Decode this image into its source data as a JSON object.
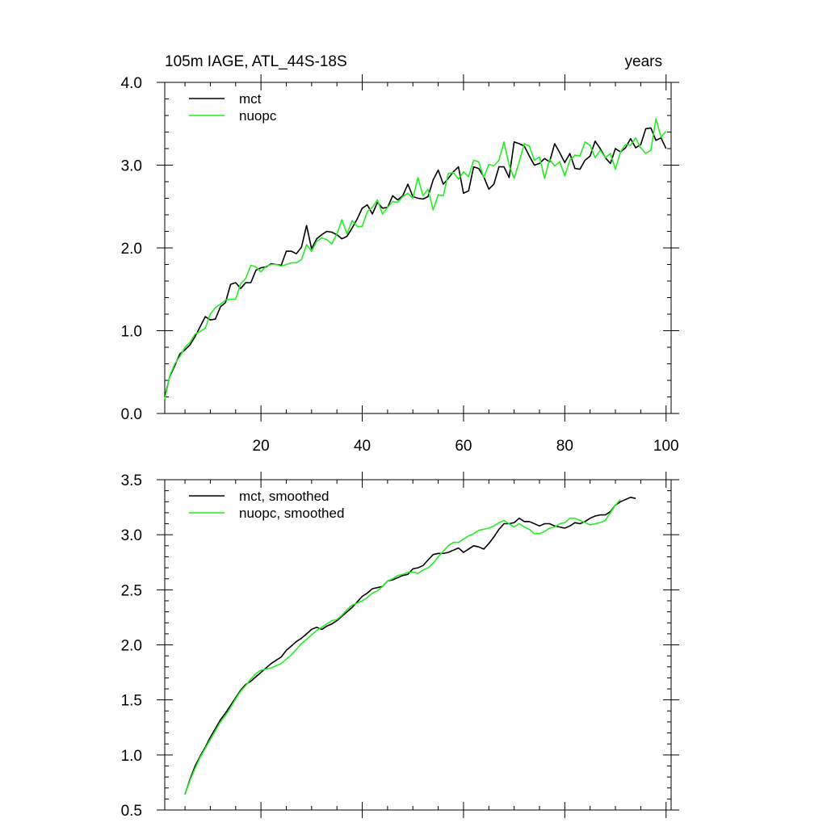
{
  "header": {
    "title": "105m IAGE, ATL_44S-18S",
    "units": "years"
  },
  "colors": {
    "mct": "#000000",
    "nuopc": "#22ee22"
  },
  "chart_data": [
    {
      "type": "line",
      "xlim": [
        1,
        101
      ],
      "ylim": [
        0,
        4
      ],
      "x_ticks": [
        20,
        40,
        60,
        80,
        100
      ],
      "y_ticks": [
        0,
        1,
        2,
        3,
        4
      ],
      "y_tick_labels": [
        "0.0",
        "1.0",
        "2.0",
        "3.0",
        "4.0"
      ],
      "x_tick_labels_shown": true,
      "legend": "top-left",
      "grid": false,
      "series": [
        {
          "name": "mct",
          "color": "#000000",
          "x_start": 1,
          "values": [
            0.2,
            0.45,
            0.58,
            0.72,
            0.77,
            0.83,
            0.93,
            1.05,
            1.17,
            1.13,
            1.14,
            1.29,
            1.34,
            1.56,
            1.58,
            1.51,
            1.58,
            1.58,
            1.73,
            1.76,
            1.77,
            1.81,
            1.8,
            1.79,
            1.96,
            1.96,
            1.93,
            2.01,
            2.27,
            1.99,
            2.11,
            2.16,
            2.2,
            2.19,
            2.16,
            2.11,
            2.14,
            2.24,
            2.35,
            2.48,
            2.52,
            2.41,
            2.55,
            2.48,
            2.49,
            2.63,
            2.58,
            2.63,
            2.77,
            2.62,
            2.6,
            2.59,
            2.62,
            2.82,
            2.94,
            2.77,
            2.84,
            2.92,
            2.98,
            2.66,
            2.69,
            2.98,
            2.96,
            2.86,
            2.71,
            2.77,
            2.98,
            2.98,
            2.85,
            3.28,
            3.26,
            3.23,
            3.11,
            3,
            3.02,
            3.08,
            3.04,
            3.26,
            3.15,
            3.03,
            3.14,
            2.96,
            2.95,
            3.06,
            3.11,
            3.29,
            3.2,
            3.09,
            3.02,
            3.2,
            3.16,
            3.21,
            3.32,
            3.21,
            3.25,
            3.44,
            3.45,
            3.3,
            3.33,
            3.2
          ]
        },
        {
          "name": "nuopc",
          "color": "#22ee22",
          "x_start": 1,
          "values": [
            0.17,
            0.46,
            0.6,
            0.69,
            0.8,
            0.86,
            0.96,
            0.99,
            1.03,
            1.2,
            1.28,
            1.32,
            1.37,
            1.38,
            1.38,
            1.57,
            1.63,
            1.79,
            1.77,
            1.71,
            1.78,
            1.8,
            1.8,
            1.78,
            1.8,
            1.82,
            1.82,
            1.86,
            2.04,
            1.96,
            2.08,
            2.12,
            2.1,
            2.05,
            2.17,
            2.34,
            2.17,
            2.33,
            2.26,
            2.26,
            2.44,
            2.49,
            2.58,
            2.41,
            2.49,
            2.56,
            2.55,
            2.62,
            2.66,
            2.6,
            2.85,
            2.63,
            2.71,
            2.46,
            2.64,
            2.63,
            2.9,
            2.91,
            2.83,
            2.92,
            2.86,
            3.06,
            3.04,
            2.85,
            3.01,
            2.99,
            3.06,
            3.28,
            3,
            2.84,
            3.04,
            3.26,
            3.23,
            3.06,
            3.1,
            2.84,
            3.07,
            2.99,
            3.04,
            2.87,
            3.06,
            3.12,
            3.11,
            3.28,
            3.24,
            3.09,
            3.18,
            3.09,
            3.14,
            2.95,
            3.16,
            3.25,
            3.24,
            3.33,
            3.21,
            3.14,
            3.18,
            3.56,
            3.34,
            3.41
          ]
        }
      ]
    },
    {
      "type": "line",
      "xlim": [
        1,
        101
      ],
      "ylim": [
        0.5,
        3.5
      ],
      "x_ticks": [
        20,
        40,
        60,
        80,
        100
      ],
      "y_ticks": [
        0.5,
        1,
        1.5,
        2,
        2.5,
        3,
        3.5
      ],
      "y_tick_labels": [
        "0.5",
        "1.0",
        "1.5",
        "2.0",
        "2.5",
        "3.0",
        "3.5"
      ],
      "x_tick_labels_shown": false,
      "legend": "top-left",
      "grid": false,
      "series": [
        {
          "name": "mct, smoothed",
          "color": "#000000",
          "x_start": 5,
          "values": [
            0.64,
            0.78,
            0.9,
            0.99,
            1.07,
            1.16,
            1.24,
            1.32,
            1.38,
            1.45,
            1.52,
            1.59,
            1.64,
            1.67,
            1.71,
            1.75,
            1.79,
            1.83,
            1.86,
            1.89,
            1.95,
            1.99,
            2.03,
            2.06,
            2.1,
            2.14,
            2.16,
            2.14,
            2.17,
            2.19,
            2.22,
            2.26,
            2.3,
            2.34,
            2.39,
            2.44,
            2.47,
            2.51,
            2.52,
            2.53,
            2.58,
            2.59,
            2.61,
            2.63,
            2.64,
            2.69,
            2.7,
            2.72,
            2.77,
            2.82,
            2.83,
            2.83,
            2.84,
            2.86,
            2.88,
            2.84,
            2.87,
            2.9,
            2.89,
            2.87,
            2.92,
            2.98,
            3.05,
            3.1,
            3.1,
            3.11,
            3.15,
            3.12,
            3.12,
            3.1,
            3.08,
            3.1,
            3.1,
            3.08,
            3.07,
            3.06,
            3.08,
            3.11,
            3.1,
            3.12,
            3.15,
            3.17,
            3.18,
            3.18,
            3.21,
            3.27,
            3.3,
            3.32,
            3.34,
            3.33
          ]
        },
        {
          "name": "nuopc, smoothed",
          "color": "#22ee22",
          "x_start": 5,
          "values": [
            0.64,
            0.77,
            0.88,
            0.98,
            1.06,
            1.14,
            1.22,
            1.3,
            1.36,
            1.43,
            1.51,
            1.58,
            1.63,
            1.69,
            1.74,
            1.77,
            1.78,
            1.79,
            1.81,
            1.83,
            1.87,
            1.91,
            1.96,
            2.01,
            2.05,
            2.09,
            2.13,
            2.16,
            2.19,
            2.22,
            2.23,
            2.27,
            2.32,
            2.36,
            2.38,
            2.4,
            2.43,
            2.47,
            2.49,
            2.53,
            2.58,
            2.6,
            2.63,
            2.64,
            2.66,
            2.66,
            2.65,
            2.68,
            2.7,
            2.74,
            2.8,
            2.85,
            2.9,
            2.93,
            2.93,
            2.96,
            2.99,
            3.01,
            3.04,
            3.05,
            3.06,
            3.08,
            3.11,
            3.13,
            3.1,
            3.07,
            3.1,
            3.07,
            3.05,
            3.01,
            3.01,
            3.03,
            3.06,
            3.07,
            3.1,
            3.11,
            3.15,
            3.15,
            3.13,
            3.11,
            3.09,
            3.1,
            3.11,
            3.13,
            3.2,
            3.27,
            3.32
          ]
        }
      ]
    }
  ]
}
